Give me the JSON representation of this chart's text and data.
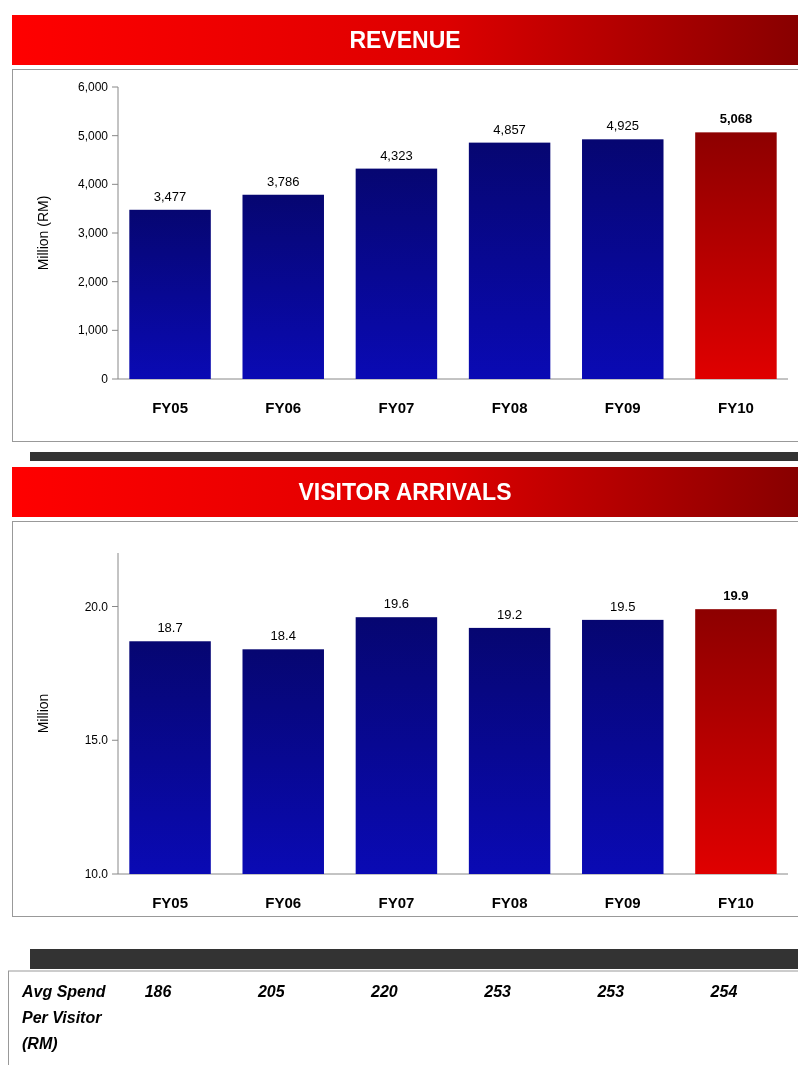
{
  "chart_data": [
    {
      "type": "bar",
      "title": "REVENUE",
      "ylabel": "Million (RM)",
      "categories": [
        "FY05",
        "FY06",
        "FY07",
        "FY08",
        "FY09",
        "FY10"
      ],
      "values": [
        3477,
        3786,
        4323,
        4857,
        4925,
        5068
      ],
      "colors": [
        "#0a0ab4",
        "#0a0ab4",
        "#0a0ab4",
        "#0a0ab4",
        "#0a0ab4",
        "#e00000"
      ],
      "value_labels": [
        "3,477",
        "3,786",
        "4,323",
        "4,857",
        "4,925",
        "5,068"
      ],
      "ylim": [
        0,
        6000
      ],
      "yticks": [
        {
          "value": 0,
          "label": "0"
        },
        {
          "value": 1000,
          "label": "1,000"
        },
        {
          "value": 2000,
          "label": "2,000"
        },
        {
          "value": 3000,
          "label": "3,000"
        },
        {
          "value": 4000,
          "label": "4,000"
        },
        {
          "value": 5000,
          "label": "5,000"
        },
        {
          "value": 6000,
          "label": "6,000"
        }
      ]
    },
    {
      "type": "bar",
      "title": "VISITOR ARRIVALS",
      "ylabel": "Million",
      "categories": [
        "FY05",
        "FY06",
        "FY07",
        "FY08",
        "FY09",
        "FY10"
      ],
      "values": [
        18.7,
        18.4,
        19.6,
        19.2,
        19.5,
        19.9
      ],
      "colors": [
        "#0a0ab4",
        "#0a0ab4",
        "#0a0ab4",
        "#0a0ab4",
        "#0a0ab4",
        "#e00000"
      ],
      "value_labels": [
        "18.7",
        "18.4",
        "19.6",
        "19.2",
        "19.5",
        "19.9"
      ],
      "ylim": [
        10,
        22
      ],
      "yticks": [
        {
          "value": 10,
          "label": "10.0"
        },
        {
          "value": 15,
          "label": "15.0"
        },
        {
          "value": 20,
          "label": "20.0"
        }
      ]
    },
    {
      "type": "other",
      "title": "Avg Spend Per Visitor (RM)",
      "categories": [
        null,
        null,
        null,
        null,
        null,
        null
      ],
      "values": [
        186,
        205,
        220,
        253,
        253,
        254
      ],
      "data_labels": true
    }
  ]
}
